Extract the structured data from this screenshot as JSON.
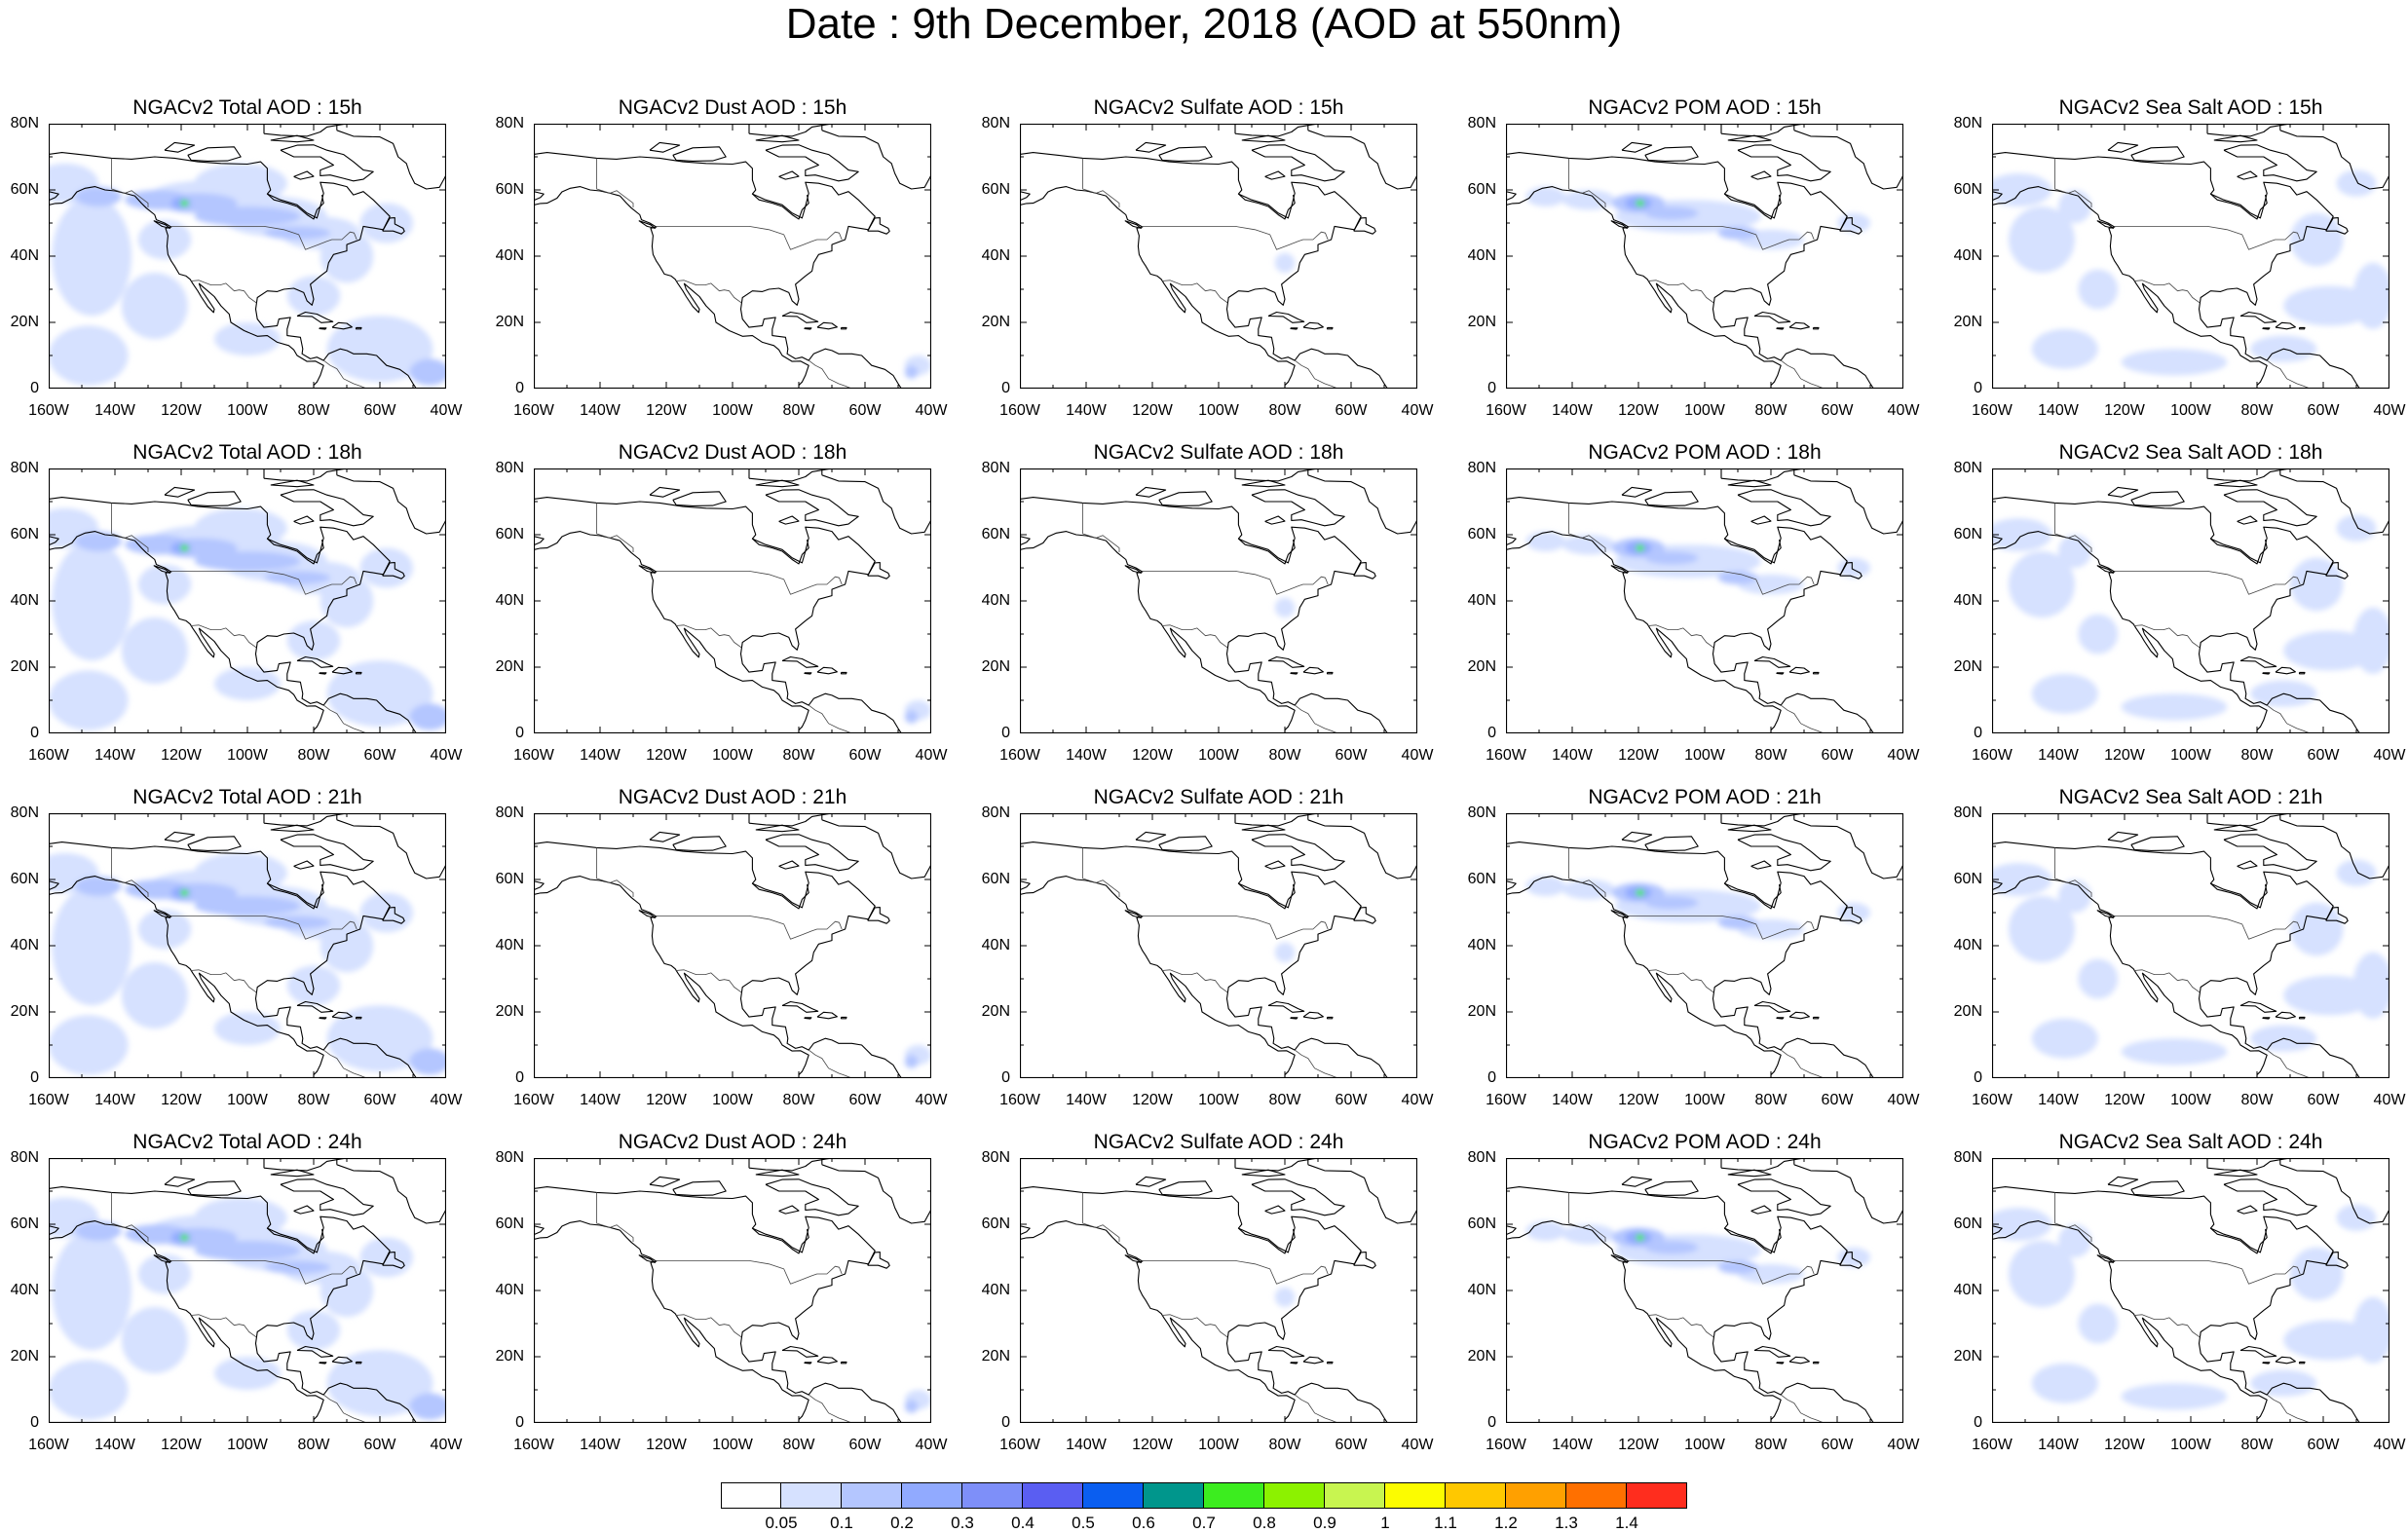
{
  "title": "Date : 9th December, 2018 (AOD at 550nm)",
  "axes": {
    "x_ticks": [
      "160W",
      "140W",
      "120W",
      "100W",
      "80W",
      "60W",
      "40W"
    ],
    "y_ticks": [
      "80N",
      "60N",
      "40N",
      "20N",
      "0"
    ]
  },
  "panels": [
    {
      "title": "NGACv2 Total AOD : 15h",
      "species": "total",
      "hour": 15
    },
    {
      "title": "NGACv2 Dust AOD : 15h",
      "species": "dust",
      "hour": 15
    },
    {
      "title": "NGACv2 Sulfate AOD : 15h",
      "species": "sulfate",
      "hour": 15
    },
    {
      "title": "NGACv2 POM AOD : 15h",
      "species": "pom",
      "hour": 15
    },
    {
      "title": "NGACv2 Sea Salt AOD : 15h",
      "species": "seasalt",
      "hour": 15
    },
    {
      "title": "NGACv2 Total AOD : 18h",
      "species": "total",
      "hour": 18
    },
    {
      "title": "NGACv2 Dust AOD : 18h",
      "species": "dust",
      "hour": 18
    },
    {
      "title": "NGACv2 Sulfate AOD : 18h",
      "species": "sulfate",
      "hour": 18
    },
    {
      "title": "NGACv2 POM AOD : 18h",
      "species": "pom",
      "hour": 18
    },
    {
      "title": "NGACv2 Sea Salt AOD : 18h",
      "species": "seasalt",
      "hour": 18
    },
    {
      "title": "NGACv2 Total AOD : 21h",
      "species": "total",
      "hour": 21
    },
    {
      "title": "NGACv2 Dust AOD : 21h",
      "species": "dust",
      "hour": 21
    },
    {
      "title": "NGACv2 Sulfate AOD : 21h",
      "species": "sulfate",
      "hour": 21
    },
    {
      "title": "NGACv2 POM AOD : 21h",
      "species": "pom",
      "hour": 21
    },
    {
      "title": "NGACv2 Sea Salt AOD : 21h",
      "species": "seasalt",
      "hour": 21
    },
    {
      "title": "NGACv2 Total AOD : 24h",
      "species": "total",
      "hour": 24
    },
    {
      "title": "NGACv2 Dust AOD : 24h",
      "species": "dust",
      "hour": 24
    },
    {
      "title": "NGACv2 Sulfate AOD : 24h",
      "species": "sulfate",
      "hour": 24
    },
    {
      "title": "NGACv2 POM AOD : 24h",
      "species": "pom",
      "hour": 24
    },
    {
      "title": "NGACv2 Sea Salt  AOD : 24h",
      "species": "seasalt",
      "hour": 24
    }
  ],
  "colorbar": {
    "labels": [
      "0.05",
      "0.1",
      "0.2",
      "0.3",
      "0.4",
      "0.5",
      "0.6",
      "0.7",
      "0.8",
      "0.9",
      "1",
      "1.1",
      "1.2",
      "1.3",
      "1.4"
    ],
    "colors": [
      "#ffffff",
      "#d6e1ff",
      "#b4c6ff",
      "#91aaff",
      "#7e8ff9",
      "#5a5ef2",
      "#0a5ef0",
      "#00968c",
      "#3ced1f",
      "#8cf200",
      "#c8f550",
      "#fcfc00",
      "#ffc800",
      "#ffa000",
      "#ff7000",
      "#ff2d1e"
    ]
  }
}
